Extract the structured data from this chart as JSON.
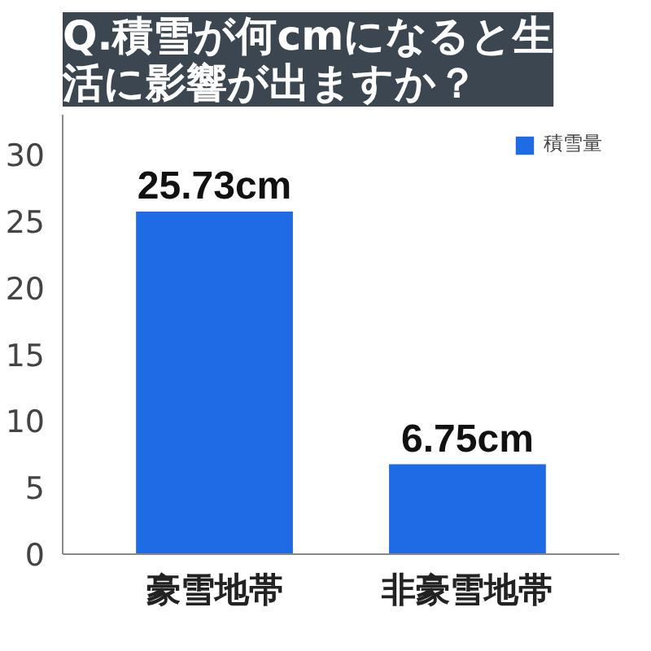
{
  "chart_data": {
    "type": "bar",
    "title": "Q.積雪が何cmになると生活に影響が出ますか？",
    "categories": [
      "豪雪地帯",
      "非豪雪地帯"
    ],
    "series": [
      {
        "name": "積雪量",
        "color": "#1f6be6",
        "values": [
          25.73,
          6.75
        ],
        "value_labels": [
          "25.73cm",
          "6.75cm"
        ]
      }
    ],
    "ylim": [
      0,
      33
    ],
    "yticks": [
      0,
      5,
      10,
      15,
      20,
      25,
      30
    ],
    "grid": false,
    "legend": "top right"
  }
}
